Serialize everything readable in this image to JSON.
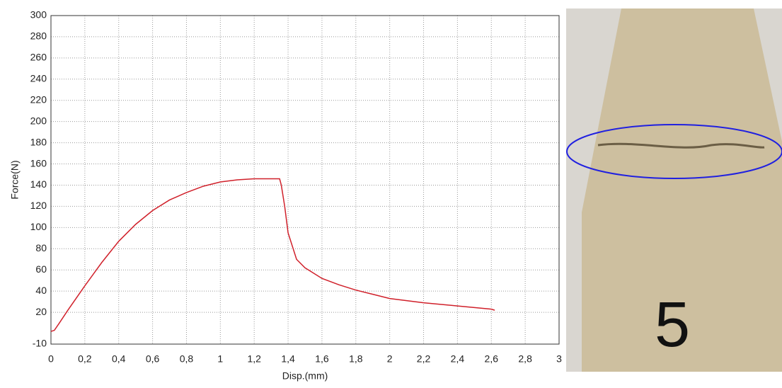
{
  "chart_data": {
    "type": "line",
    "xlabel": "Disp.(mm)",
    "ylabel": "Force(N)",
    "xlim": [
      0,
      3
    ],
    "ylim": [
      -10,
      300
    ],
    "xticks": [
      0,
      {
        "value": 0.2,
        "label": "0,2"
      },
      {
        "value": 0.4,
        "label": "0,4"
      },
      {
        "value": 0.6,
        "label": "0,6"
      },
      {
        "value": 0.8,
        "label": "0,8"
      },
      1,
      {
        "value": 1.2,
        "label": "1,2"
      },
      {
        "value": 1.4,
        "label": "1,4"
      },
      {
        "value": 1.6,
        "label": "1,6"
      },
      {
        "value": 1.8,
        "label": "1,8"
      },
      2,
      {
        "value": 2.2,
        "label": "2,2"
      },
      {
        "value": 2.4,
        "label": "2,4"
      },
      {
        "value": 2.6,
        "label": "2,6"
      },
      {
        "value": 2.8,
        "label": "2,8"
      },
      3
    ],
    "yticks": [
      -10,
      20,
      40,
      60,
      80,
      100,
      120,
      140,
      160,
      180,
      200,
      220,
      240,
      260,
      280,
      300
    ],
    "grid": true,
    "series": [
      {
        "color": "#d0202a",
        "x": [
          0,
          0.02,
          0.05,
          0.1,
          0.2,
          0.3,
          0.4,
          0.5,
          0.6,
          0.7,
          0.8,
          0.9,
          1.0,
          1.1,
          1.2,
          1.3,
          1.35,
          1.36,
          1.38,
          1.4,
          1.45,
          1.5,
          1.6,
          1.7,
          1.8,
          1.9,
          2.0,
          2.2,
          2.4,
          2.6,
          2.62
        ],
        "values": [
          2,
          3,
          10,
          22,
          45,
          67,
          87,
          103,
          116,
          126,
          133,
          139,
          143,
          145,
          146,
          146,
          146,
          140,
          120,
          95,
          70,
          62,
          52,
          46,
          41,
          37,
          33,
          29,
          26,
          23,
          22
        ]
      }
    ]
  },
  "photo": {
    "label": "5"
  }
}
